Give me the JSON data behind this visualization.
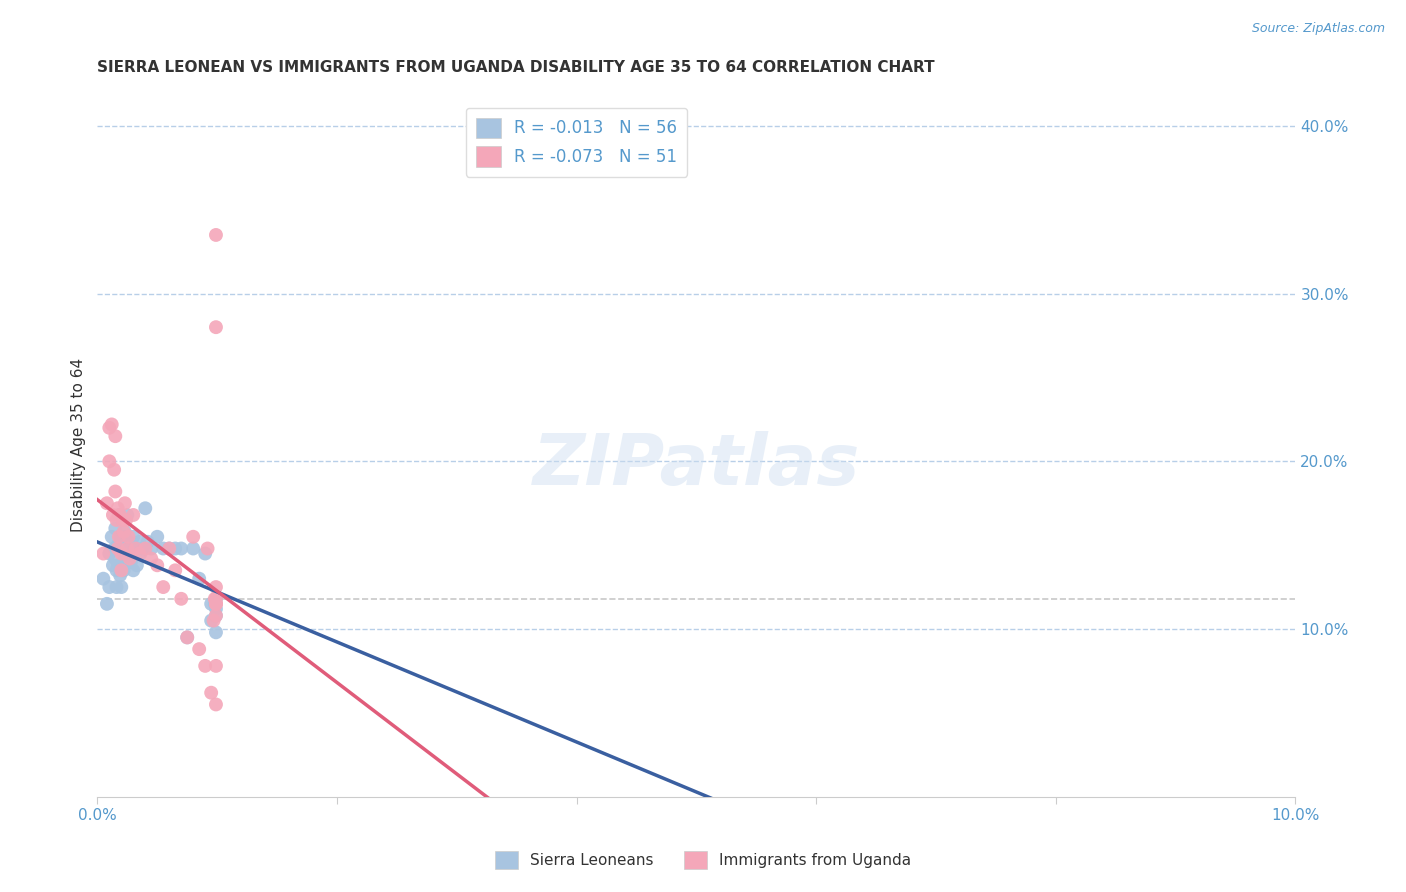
{
  "title": "SIERRA LEONEAN VS IMMIGRANTS FROM UGANDA DISABILITY AGE 35 TO 64 CORRELATION CHART",
  "source": "Source: ZipAtlas.com",
  "ylabel": "Disability Age 35 to 64",
  "xlim": [
    0.0,
    0.1
  ],
  "ylim": [
    0.0,
    0.42
  ],
  "xticks": [
    0.0,
    0.02,
    0.04,
    0.06,
    0.08,
    0.1
  ],
  "xticklabels": [
    "0.0%",
    "",
    "",
    "",
    "",
    "10.0%"
  ],
  "yticks_right": [
    0.1,
    0.2,
    0.3,
    0.4
  ],
  "yticklabels_right": [
    "10.0%",
    "20.0%",
    "30.0%",
    "40.0%"
  ],
  "watermark": "ZIPatlas",
  "legend_R_blue": "-0.013",
  "legend_N_blue": "56",
  "legend_R_pink": "-0.073",
  "legend_N_pink": "51",
  "blue_color": "#a8c4e0",
  "pink_color": "#f4a7b9",
  "trendline_blue": "#3a5fa0",
  "trendline_pink": "#e05c7a",
  "grid_color": "#b8cfe8",
  "title_color": "#333333",
  "axis_label_color": "#5599cc",
  "sierra_x": [
    0.0005,
    0.0008,
    0.001,
    0.001,
    0.0012,
    0.0013,
    0.0014,
    0.0015,
    0.0015,
    0.0016,
    0.0016,
    0.0017,
    0.0017,
    0.0018,
    0.0018,
    0.0019,
    0.0019,
    0.002,
    0.002,
    0.002,
    0.0021,
    0.0022,
    0.0022,
    0.0023,
    0.0023,
    0.0024,
    0.0025,
    0.0026,
    0.0027,
    0.0028,
    0.003,
    0.003,
    0.0032,
    0.0033,
    0.0035,
    0.0036,
    0.0038,
    0.004,
    0.0042,
    0.0045,
    0.005,
    0.0055,
    0.006,
    0.0065,
    0.007,
    0.0075,
    0.008,
    0.0085,
    0.009,
    0.0095,
    0.0095,
    0.0098,
    0.0099,
    0.0099,
    0.0099,
    0.0099
  ],
  "sierra_y": [
    0.13,
    0.115,
    0.145,
    0.125,
    0.155,
    0.138,
    0.148,
    0.16,
    0.142,
    0.135,
    0.125,
    0.15,
    0.138,
    0.168,
    0.148,
    0.155,
    0.132,
    0.15,
    0.138,
    0.125,
    0.155,
    0.148,
    0.135,
    0.158,
    0.142,
    0.148,
    0.168,
    0.152,
    0.148,
    0.14,
    0.155,
    0.135,
    0.148,
    0.138,
    0.152,
    0.145,
    0.148,
    0.172,
    0.152,
    0.148,
    0.155,
    0.148,
    0.148,
    0.148,
    0.148,
    0.095,
    0.148,
    0.13,
    0.145,
    0.115,
    0.105,
    0.115,
    0.098,
    0.112,
    0.108,
    0.118
  ],
  "uganda_x": [
    0.0005,
    0.0008,
    0.001,
    0.001,
    0.0012,
    0.0013,
    0.0014,
    0.0015,
    0.0015,
    0.0016,
    0.0017,
    0.0017,
    0.0018,
    0.0019,
    0.002,
    0.002,
    0.0021,
    0.0022,
    0.0023,
    0.0024,
    0.0025,
    0.0026,
    0.0027,
    0.003,
    0.0032,
    0.0035,
    0.004,
    0.0045,
    0.005,
    0.0055,
    0.006,
    0.0065,
    0.007,
    0.0075,
    0.008,
    0.0085,
    0.009,
    0.0092,
    0.0095,
    0.0097,
    0.0098,
    0.0099,
    0.0099,
    0.0099,
    0.0099,
    0.0099,
    0.0099,
    0.0099,
    0.0099,
    0.0099,
    0.0099
  ],
  "uganda_y": [
    0.145,
    0.175,
    0.22,
    0.2,
    0.222,
    0.168,
    0.195,
    0.215,
    0.182,
    0.165,
    0.172,
    0.148,
    0.155,
    0.168,
    0.145,
    0.135,
    0.165,
    0.158,
    0.175,
    0.165,
    0.148,
    0.155,
    0.142,
    0.168,
    0.148,
    0.145,
    0.148,
    0.142,
    0.138,
    0.125,
    0.148,
    0.135,
    0.118,
    0.095,
    0.155,
    0.088,
    0.078,
    0.148,
    0.062,
    0.105,
    0.118,
    0.125,
    0.115,
    0.335,
    0.28,
    0.115,
    0.078,
    0.108,
    0.055,
    0.118,
    0.115
  ]
}
